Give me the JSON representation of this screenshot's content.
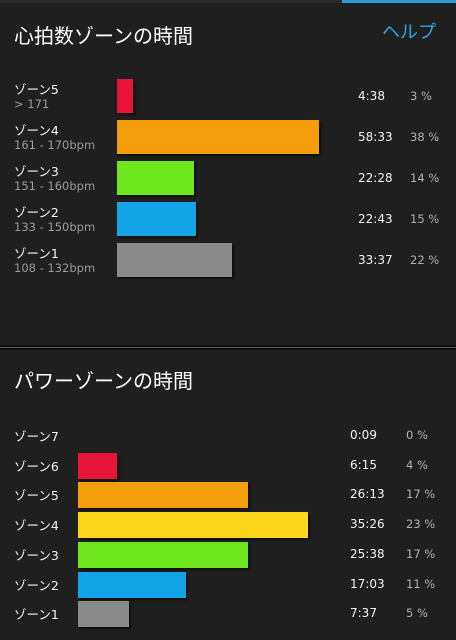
{
  "heart_rate": {
    "title": "心拍数ゾーンの時間",
    "help_label": "ヘルプ",
    "zones": [
      {
        "name": "ゾーン5",
        "range": "> 171",
        "time": "4:38",
        "percent": "3 %",
        "color": "#e8143a",
        "fraction": 0.08
      },
      {
        "name": "ゾーン4",
        "range": "161 - 170bpm",
        "time": "58:33",
        "percent": "38 %",
        "color": "#f59e0c",
        "fraction": 1.0
      },
      {
        "name": "ゾーン3",
        "range": "151 - 160bpm",
        "time": "22:28",
        "percent": "14 %",
        "color": "#6ee71e",
        "fraction": 0.38
      },
      {
        "name": "ゾーン2",
        "range": "133 - 150bpm",
        "time": "22:43",
        "percent": "15 %",
        "color": "#12a4e6",
        "fraction": 0.39
      },
      {
        "name": "ゾーン1",
        "range": "108 - 132bpm",
        "time": "33:37",
        "percent": "22 %",
        "color": "#8a8a8a",
        "fraction": 0.57
      }
    ]
  },
  "power": {
    "title": "パワーゾーンの時間",
    "zones": [
      {
        "name": "ゾーン7",
        "time": "0:09",
        "percent": "0 %",
        "color": "#7b2fbe",
        "fraction": 0.0
      },
      {
        "name": "ゾーン6",
        "time": "6:15",
        "percent": "4 %",
        "color": "#e8143a",
        "fraction": 0.17
      },
      {
        "name": "ゾーン5",
        "time": "26:13",
        "percent": "17 %",
        "color": "#f59e0c",
        "fraction": 0.74
      },
      {
        "name": "ゾーン4",
        "time": "35:26",
        "percent": "23 %",
        "color": "#fad51a",
        "fraction": 1.0
      },
      {
        "name": "ゾーン3",
        "time": "25:38",
        "percent": "17 %",
        "color": "#6ee71e",
        "fraction": 0.74
      },
      {
        "name": "ゾーン2",
        "time": "17:03",
        "percent": "11 %",
        "color": "#12a4e6",
        "fraction": 0.47
      },
      {
        "name": "ゾーン1",
        "time": "7:37",
        "percent": "5 %",
        "color": "#8a8a8a",
        "fraction": 0.22
      }
    ]
  }
}
